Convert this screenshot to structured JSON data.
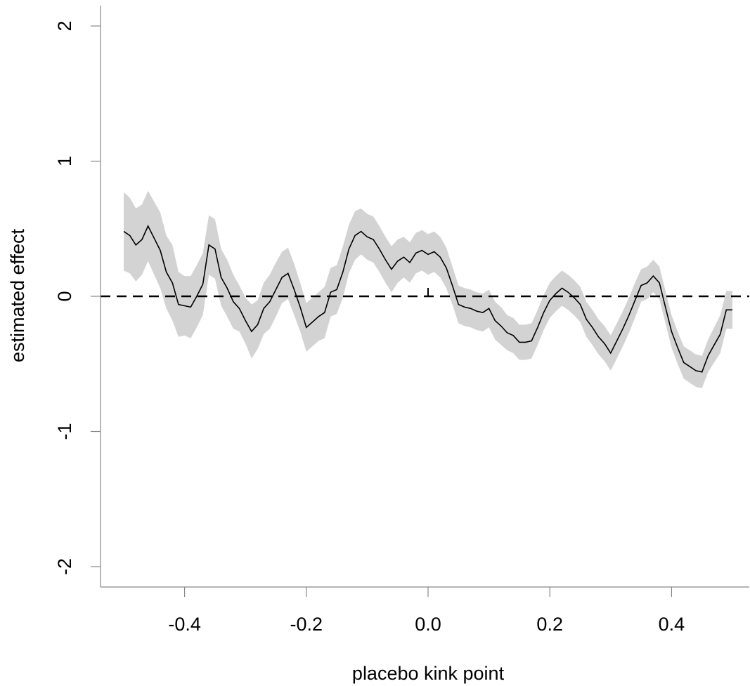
{
  "chart_data": {
    "type": "line",
    "title": "",
    "xlabel": "placebo kink point",
    "ylabel": "estimated effect",
    "xlim": [
      -0.54,
      0.53
    ],
    "ylim": [
      -2.15,
      2.15
    ],
    "x_ticks": [
      -0.4,
      -0.2,
      0.0,
      0.2,
      0.4
    ],
    "x_tick_labels": [
      "-0.4",
      "-0.2",
      "0.0",
      "0.2",
      "0.4"
    ],
    "y_ticks": [
      -2,
      -1,
      0,
      1,
      2
    ],
    "y_tick_labels": [
      "-2",
      "-1",
      "0",
      "1",
      "2"
    ],
    "grid": false,
    "reference_line": {
      "y": 0,
      "style": "dashed"
    },
    "colors": {
      "line": "#000000",
      "band": "#d3d3d3",
      "axis": "#888888"
    },
    "x": [
      -0.5,
      -0.49,
      -0.48,
      -0.47,
      -0.46,
      -0.45,
      -0.44,
      -0.43,
      -0.42,
      -0.41,
      -0.4,
      -0.39,
      -0.38,
      -0.37,
      -0.36,
      -0.35,
      -0.34,
      -0.33,
      -0.32,
      -0.31,
      -0.3,
      -0.29,
      -0.28,
      -0.27,
      -0.26,
      -0.25,
      -0.24,
      -0.23,
      -0.22,
      -0.21,
      -0.2,
      -0.19,
      -0.18,
      -0.17,
      -0.16,
      -0.15,
      -0.14,
      -0.13,
      -0.12,
      -0.11,
      -0.1,
      -0.09,
      -0.08,
      -0.07,
      -0.06,
      -0.05,
      -0.04,
      -0.03,
      -0.02,
      -0.01,
      0.0,
      0.01,
      0.02,
      0.03,
      0.04,
      0.05,
      0.06,
      0.07,
      0.08,
      0.09,
      0.1,
      0.11,
      0.12,
      0.13,
      0.14,
      0.15,
      0.16,
      0.17,
      0.18,
      0.19,
      0.2,
      0.21,
      0.22,
      0.23,
      0.24,
      0.25,
      0.26,
      0.27,
      0.28,
      0.29,
      0.3,
      0.31,
      0.32,
      0.33,
      0.34,
      0.35,
      0.36,
      0.37,
      0.38,
      0.39,
      0.4,
      0.41,
      0.42,
      0.43,
      0.44,
      0.45,
      0.46,
      0.47,
      0.48,
      0.49,
      0.5
    ],
    "estimate": [
      0.48,
      0.45,
      0.38,
      0.42,
      0.52,
      0.43,
      0.34,
      0.18,
      0.1,
      -0.06,
      -0.07,
      -0.08,
      0.0,
      0.09,
      0.38,
      0.35,
      0.14,
      0.06,
      -0.04,
      -0.09,
      -0.18,
      -0.26,
      -0.21,
      -0.09,
      -0.04,
      0.05,
      0.14,
      0.17,
      0.05,
      -0.08,
      -0.23,
      -0.19,
      -0.15,
      -0.12,
      0.03,
      0.05,
      0.18,
      0.35,
      0.45,
      0.48,
      0.44,
      0.42,
      0.35,
      0.27,
      0.2,
      0.26,
      0.29,
      0.25,
      0.32,
      0.34,
      0.31,
      0.33,
      0.29,
      0.21,
      0.08,
      -0.06,
      -0.08,
      -0.09,
      -0.11,
      -0.12,
      -0.09,
      -0.18,
      -0.22,
      -0.27,
      -0.29,
      -0.34,
      -0.34,
      -0.33,
      -0.23,
      -0.12,
      -0.03,
      0.02,
      0.06,
      0.03,
      -0.01,
      -0.06,
      -0.17,
      -0.23,
      -0.3,
      -0.35,
      -0.42,
      -0.33,
      -0.24,
      -0.14,
      -0.03,
      0.08,
      0.1,
      0.15,
      0.1,
      -0.08,
      -0.26,
      -0.38,
      -0.49,
      -0.52,
      -0.55,
      -0.56,
      -0.44,
      -0.36,
      -0.28,
      -0.1,
      -0.1
    ],
    "upper": [
      0.77,
      0.73,
      0.65,
      0.68,
      0.78,
      0.7,
      0.62,
      0.45,
      0.38,
      0.18,
      0.15,
      0.15,
      0.23,
      0.32,
      0.6,
      0.57,
      0.35,
      0.27,
      0.16,
      0.08,
      -0.01,
      -0.06,
      -0.03,
      0.1,
      0.16,
      0.25,
      0.33,
      0.36,
      0.24,
      0.1,
      -0.05,
      -0.01,
      0.03,
      0.07,
      0.21,
      0.23,
      0.37,
      0.53,
      0.63,
      0.65,
      0.61,
      0.59,
      0.52,
      0.44,
      0.37,
      0.42,
      0.44,
      0.4,
      0.47,
      0.49,
      0.46,
      0.48,
      0.44,
      0.36,
      0.22,
      0.08,
      0.06,
      0.05,
      0.03,
      0.02,
      0.05,
      -0.04,
      -0.08,
      -0.14,
      -0.16,
      -0.21,
      -0.21,
      -0.2,
      -0.1,
      0.01,
      0.1,
      0.15,
      0.19,
      0.16,
      0.12,
      0.07,
      -0.04,
      -0.1,
      -0.17,
      -0.22,
      -0.29,
      -0.2,
      -0.11,
      -0.01,
      0.1,
      0.2,
      0.22,
      0.27,
      0.22,
      0.04,
      -0.14,
      -0.26,
      -0.37,
      -0.4,
      -0.43,
      -0.44,
      -0.32,
      -0.23,
      -0.14,
      0.04,
      0.04
    ],
    "lower": [
      0.19,
      0.17,
      0.11,
      0.16,
      0.26,
      0.16,
      0.06,
      -0.09,
      -0.18,
      -0.3,
      -0.29,
      -0.31,
      -0.23,
      -0.14,
      0.16,
      0.13,
      -0.07,
      -0.15,
      -0.24,
      -0.26,
      -0.35,
      -0.46,
      -0.39,
      -0.28,
      -0.24,
      -0.15,
      -0.05,
      -0.02,
      -0.14,
      -0.26,
      -0.41,
      -0.37,
      -0.33,
      -0.31,
      -0.15,
      -0.13,
      -0.01,
      0.17,
      0.27,
      0.31,
      0.27,
      0.25,
      0.18,
      0.1,
      0.03,
      0.1,
      0.14,
      0.1,
      0.17,
      0.19,
      0.16,
      0.18,
      0.14,
      0.06,
      -0.06,
      -0.2,
      -0.22,
      -0.23,
      -0.25,
      -0.26,
      -0.23,
      -0.32,
      -0.36,
      -0.4,
      -0.42,
      -0.47,
      -0.47,
      -0.46,
      -0.36,
      -0.25,
      -0.16,
      -0.11,
      -0.07,
      -0.1,
      -0.14,
      -0.19,
      -0.3,
      -0.36,
      -0.43,
      -0.48,
      -0.55,
      -0.46,
      -0.37,
      -0.27,
      -0.16,
      -0.04,
      -0.02,
      0.03,
      -0.02,
      -0.2,
      -0.38,
      -0.5,
      -0.61,
      -0.64,
      -0.67,
      -0.68,
      -0.56,
      -0.49,
      -0.42,
      -0.24,
      -0.24
    ]
  }
}
